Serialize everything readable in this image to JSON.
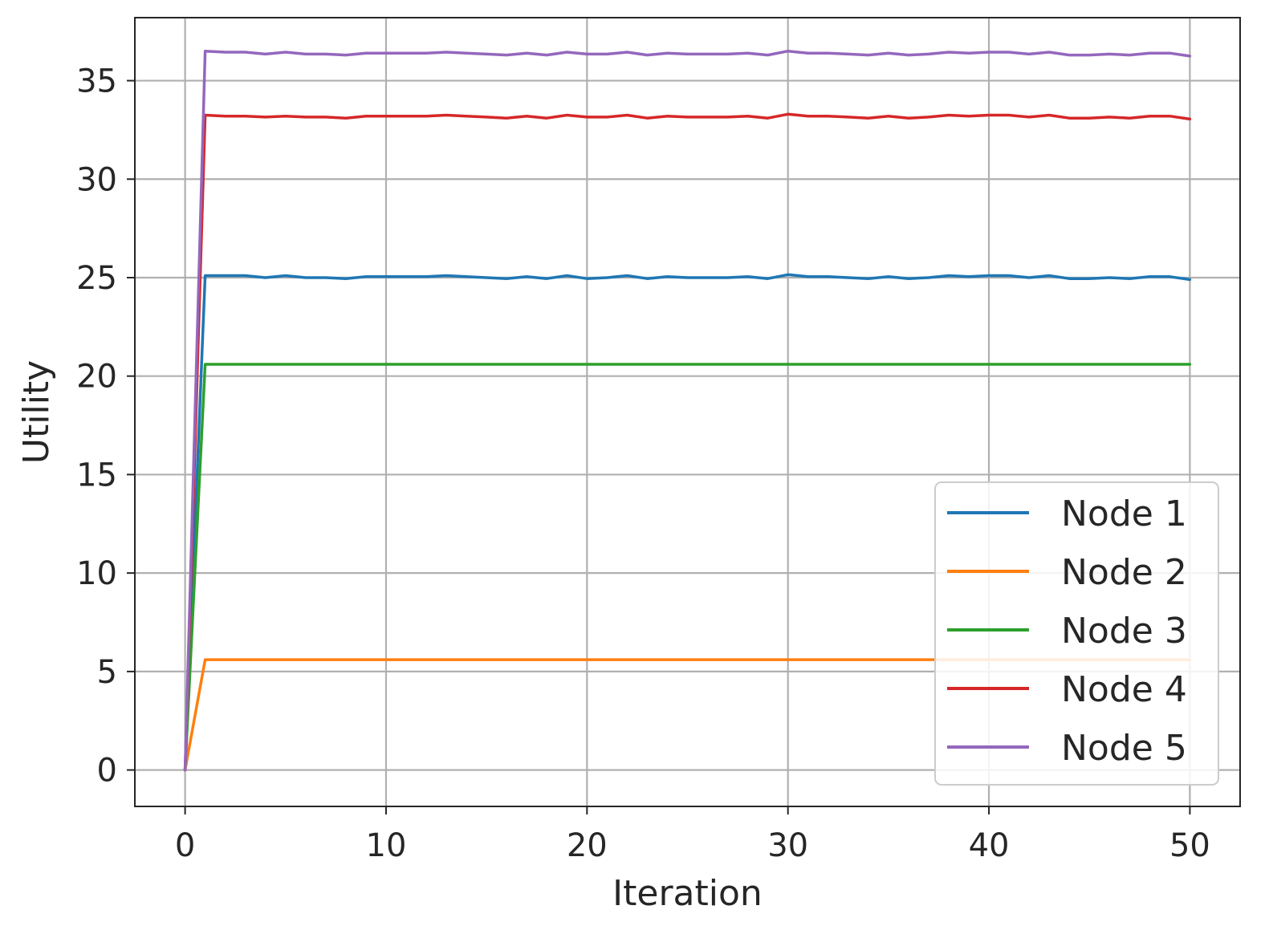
{
  "chart_data": {
    "type": "line",
    "xlabel": "Iteration",
    "ylabel": "Utility",
    "xlim": [
      -2.5,
      52.5
    ],
    "ylim": [
      -1.85,
      38.2
    ],
    "xticks": [
      0,
      10,
      20,
      30,
      40,
      50
    ],
    "yticks": [
      0,
      5,
      10,
      15,
      20,
      25,
      30,
      35
    ],
    "grid": true,
    "legend_position": "lower right",
    "series": [
      {
        "name": "Node 1",
        "color": "#1f77b4",
        "values": [
          0,
          25.1,
          25.1,
          25.1,
          25.0,
          25.1,
          25.0,
          25.0,
          24.95,
          25.05,
          25.05,
          25.05,
          25.05,
          25.1,
          25.05,
          25.0,
          24.95,
          25.05,
          24.95,
          25.1,
          24.95,
          25.0,
          25.1,
          24.95,
          25.05,
          25.0,
          25.0,
          25.0,
          25.05,
          24.95,
          25.15,
          25.05,
          25.05,
          25.0,
          24.95,
          25.05,
          24.95,
          25.0,
          25.1,
          25.05,
          25.1,
          25.1,
          25.0,
          25.1,
          24.95,
          24.95,
          25.0,
          24.95,
          25.05,
          25.05,
          24.9
        ]
      },
      {
        "name": "Node 2",
        "color": "#ff7f0e",
        "values": [
          0,
          5.6,
          5.6,
          5.6,
          5.6,
          5.6,
          5.6,
          5.6,
          5.6,
          5.6,
          5.6,
          5.6,
          5.6,
          5.6,
          5.6,
          5.6,
          5.6,
          5.6,
          5.6,
          5.6,
          5.6,
          5.6,
          5.6,
          5.6,
          5.6,
          5.6,
          5.6,
          5.6,
          5.6,
          5.6,
          5.6,
          5.6,
          5.6,
          5.6,
          5.6,
          5.6,
          5.6,
          5.6,
          5.6,
          5.6,
          5.6,
          5.6,
          5.6,
          5.6,
          5.6,
          5.6,
          5.6,
          5.6,
          5.6,
          5.6,
          5.6
        ]
      },
      {
        "name": "Node 3",
        "color": "#2ca02c",
        "values": [
          0,
          20.6,
          20.6,
          20.6,
          20.6,
          20.6,
          20.6,
          20.6,
          20.6,
          20.6,
          20.6,
          20.6,
          20.6,
          20.6,
          20.6,
          20.6,
          20.6,
          20.6,
          20.6,
          20.6,
          20.6,
          20.6,
          20.6,
          20.6,
          20.6,
          20.6,
          20.6,
          20.6,
          20.6,
          20.6,
          20.6,
          20.6,
          20.6,
          20.6,
          20.6,
          20.6,
          20.6,
          20.6,
          20.6,
          20.6,
          20.6,
          20.6,
          20.6,
          20.6,
          20.6,
          20.6,
          20.6,
          20.6,
          20.6,
          20.6,
          20.6
        ]
      },
      {
        "name": "Node 4",
        "color": "#d62728",
        "values": [
          0,
          33.25,
          33.2,
          33.2,
          33.15,
          33.2,
          33.15,
          33.15,
          33.1,
          33.2,
          33.2,
          33.2,
          33.2,
          33.25,
          33.2,
          33.15,
          33.1,
          33.2,
          33.1,
          33.25,
          33.15,
          33.15,
          33.25,
          33.1,
          33.2,
          33.15,
          33.15,
          33.15,
          33.2,
          33.1,
          33.3,
          33.2,
          33.2,
          33.15,
          33.1,
          33.2,
          33.1,
          33.15,
          33.25,
          33.2,
          33.25,
          33.25,
          33.15,
          33.25,
          33.1,
          33.1,
          33.15,
          33.1,
          33.2,
          33.2,
          33.05
        ]
      },
      {
        "name": "Node 5",
        "color": "#9467bd",
        "values": [
          0,
          36.5,
          36.45,
          36.45,
          36.35,
          36.45,
          36.35,
          36.35,
          36.3,
          36.4,
          36.4,
          36.4,
          36.4,
          36.45,
          36.4,
          36.35,
          36.3,
          36.4,
          36.3,
          36.45,
          36.35,
          36.35,
          36.45,
          36.3,
          36.4,
          36.35,
          36.35,
          36.35,
          36.4,
          36.3,
          36.5,
          36.4,
          36.4,
          36.35,
          36.3,
          36.4,
          36.3,
          36.35,
          36.45,
          36.4,
          36.45,
          36.45,
          36.35,
          36.45,
          36.3,
          36.3,
          36.35,
          36.3,
          36.4,
          36.4,
          36.25
        ]
      }
    ]
  }
}
